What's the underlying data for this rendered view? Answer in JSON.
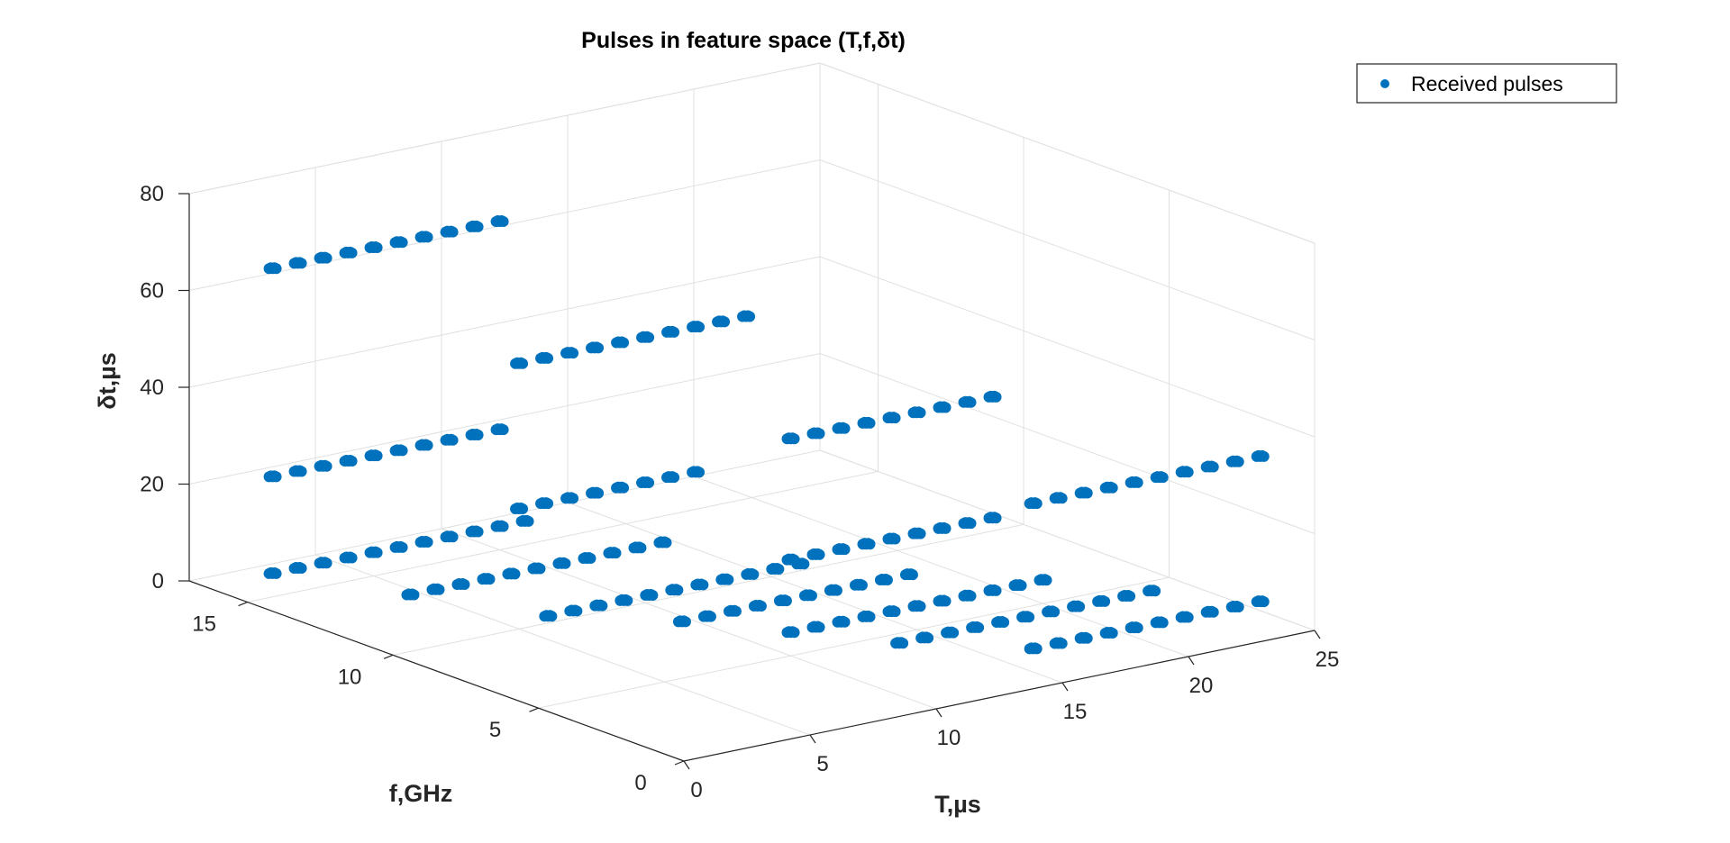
{
  "chart_data": {
    "type": "scatter",
    "title": "Pulses in feature space (T,f,δt)",
    "xlabel": "T,µs",
    "ylabel": "f,GHz",
    "zlabel": "δt,µs",
    "xlim": [
      0,
      25
    ],
    "ylim": [
      0,
      17
    ],
    "zlim": [
      0,
      80
    ],
    "xticks": [
      "0",
      "5",
      "10",
      "15",
      "20",
      "25"
    ],
    "yticks": [
      "0",
      "5",
      "10",
      "15"
    ],
    "zticks": [
      "0",
      "20",
      "40",
      "60",
      "80"
    ],
    "grid": true,
    "legend_position": "top-right",
    "color": "#0072BD",
    "series": [
      {
        "name": "Received pulses",
        "clusters": [
          {
            "T": [
              1,
              2,
              3,
              4,
              5,
              6,
              7,
              8,
              9,
              10
            ],
            "f": 15,
            "dt": 68
          },
          {
            "T": [
              5,
              6,
              7,
              8,
              9,
              10,
              11,
              12,
              13,
              14
            ],
            "f": 10,
            "dt": 55
          },
          {
            "T": [
              10,
              11,
              12,
              13,
              14,
              15,
              16,
              17,
              18
            ],
            "f": 5,
            "dt": 45
          },
          {
            "T": [
              15,
              16,
              17,
              18,
              19,
              20,
              21,
              22,
              23,
              24
            ],
            "f": 1,
            "dt": 35
          },
          {
            "T": [
              1,
              2,
              3,
              4,
              5,
              6,
              7,
              8,
              9,
              10
            ],
            "f": 15,
            "dt": 25
          },
          {
            "T": [
              5,
              6,
              7,
              8,
              9,
              10,
              11,
              12
            ],
            "f": 10,
            "dt": 25
          },
          {
            "T": [
              10,
              11,
              12,
              13,
              14,
              15,
              16,
              17,
              18
            ],
            "f": 5,
            "dt": 20
          },
          {
            "T": [
              1,
              2,
              3,
              4,
              5,
              6,
              7,
              8,
              9,
              10,
              11
            ],
            "f": 15,
            "dt": 5
          },
          {
            "T": [
              3,
              4,
              5,
              6,
              7,
              8,
              9,
              10,
              11,
              12,
              13
            ],
            "f": 12,
            "dt": 5
          },
          {
            "T": [
              5,
              6,
              7,
              8,
              9,
              10,
              11,
              12,
              13,
              14,
              15
            ],
            "f": 9,
            "dt": 5
          },
          {
            "T": [
              8,
              9,
              10,
              11,
              12,
              13,
              14,
              15,
              16,
              17
            ],
            "f": 7,
            "dt": 5
          },
          {
            "T": [
              10,
              11,
              12,
              13,
              14,
              15,
              16,
              17,
              18,
              19,
              20
            ],
            "f": 5,
            "dt": 5
          },
          {
            "T": [
              12,
              13,
              14,
              15,
              16,
              17,
              18,
              19,
              20,
              21,
              22
            ],
            "f": 3,
            "dt": 5
          },
          {
            "T": [
              15,
              16,
              17,
              18,
              19,
              20,
              21,
              22,
              23,
              24
            ],
            "f": 1,
            "dt": 5
          }
        ]
      }
    ]
  }
}
